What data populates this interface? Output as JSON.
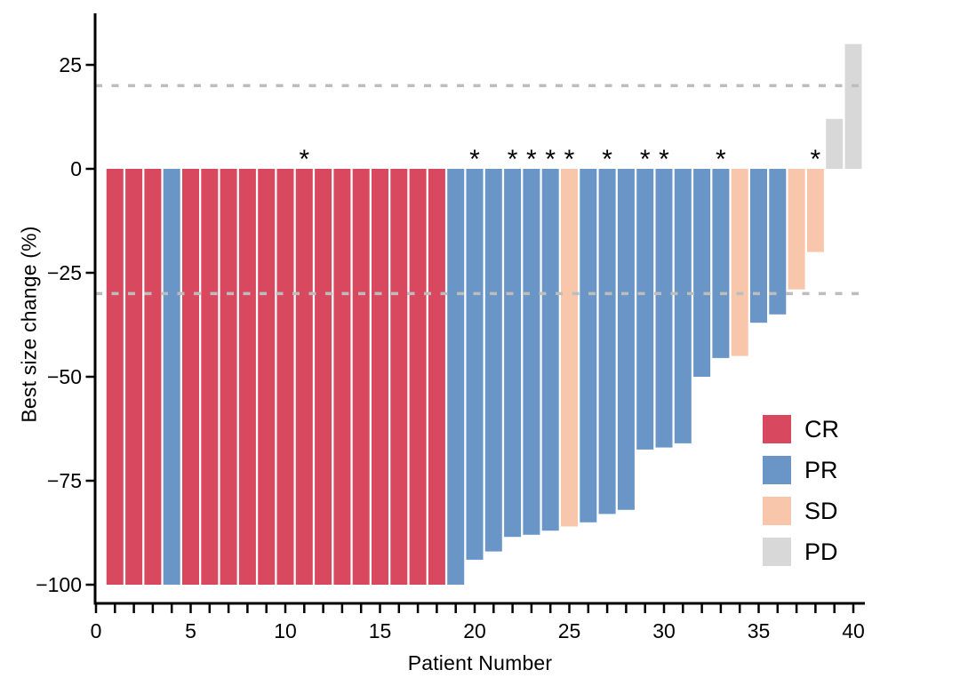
{
  "figure": {
    "background": "#ffffff",
    "axis_color": "#000000",
    "text_color": "#000000"
  },
  "chart_data": {
    "type": "bar",
    "variant": "waterfall",
    "title": "",
    "xlabel": "Patient Number",
    "ylabel": "Best size change (%)",
    "xlim": [
      0,
      40.6
    ],
    "ylim": [
      -104,
      37
    ],
    "grid": "off",
    "legend_position": "inside-right",
    "x_ticks": {
      "min": 0,
      "max": 40,
      "minor_every": 1,
      "labeled": [
        0,
        5,
        10,
        15,
        20,
        25,
        30,
        35,
        40
      ]
    },
    "y_ticks": [
      {
        "v": 25,
        "label": "25"
      },
      {
        "v": 0,
        "label": "0"
      },
      {
        "v": -25,
        "label": "−25"
      },
      {
        "v": -50,
        "label": "−50"
      },
      {
        "v": -75,
        "label": "−75"
      },
      {
        "v": -100,
        "label": "−100"
      }
    ],
    "reference_lines": {
      "values": [
        20,
        -30
      ],
      "color": "#bdbdbd",
      "style": "dashed"
    },
    "marker_symbol": "*",
    "marked_patients": [
      11,
      20,
      22,
      23,
      24,
      25,
      27,
      29,
      30,
      33,
      38
    ],
    "colors": {
      "CR": "#d8495f",
      "PR": "#6996c6",
      "SD": "#f8c6aa",
      "PD": "#d8d8d8"
    },
    "legend": [
      {
        "label": "CR",
        "color": "#d8495f"
      },
      {
        "label": "PR",
        "color": "#6996c6"
      },
      {
        "label": "SD",
        "color": "#f8c6aa"
      },
      {
        "label": "PD",
        "color": "#d8d8d8"
      }
    ],
    "patients": [
      {
        "patient": 1,
        "response": "CR",
        "value": -100,
        "star": false
      },
      {
        "patient": 2,
        "response": "CR",
        "value": -100,
        "star": false
      },
      {
        "patient": 3,
        "response": "CR",
        "value": -100,
        "star": false
      },
      {
        "patient": 4,
        "response": "PR",
        "value": -100,
        "star": false
      },
      {
        "patient": 5,
        "response": "CR",
        "value": -100,
        "star": false
      },
      {
        "patient": 6,
        "response": "CR",
        "value": -100,
        "star": false
      },
      {
        "patient": 7,
        "response": "CR",
        "value": -100,
        "star": false
      },
      {
        "patient": 8,
        "response": "CR",
        "value": -100,
        "star": false
      },
      {
        "patient": 9,
        "response": "CR",
        "value": -100,
        "star": false
      },
      {
        "patient": 10,
        "response": "CR",
        "value": -100,
        "star": false
      },
      {
        "patient": 11,
        "response": "CR",
        "value": -100,
        "star": true
      },
      {
        "patient": 12,
        "response": "CR",
        "value": -100,
        "star": false
      },
      {
        "patient": 13,
        "response": "CR",
        "value": -100,
        "star": false
      },
      {
        "patient": 14,
        "response": "CR",
        "value": -100,
        "star": false
      },
      {
        "patient": 15,
        "response": "CR",
        "value": -100,
        "star": false
      },
      {
        "patient": 16,
        "response": "CR",
        "value": -100,
        "star": false
      },
      {
        "patient": 17,
        "response": "CR",
        "value": -100,
        "star": false
      },
      {
        "patient": 18,
        "response": "CR",
        "value": -100,
        "star": false
      },
      {
        "patient": 19,
        "response": "PR",
        "value": -100,
        "star": false
      },
      {
        "patient": 20,
        "response": "PR",
        "value": -94,
        "star": true
      },
      {
        "patient": 21,
        "response": "PR",
        "value": -92,
        "star": false
      },
      {
        "patient": 22,
        "response": "PR",
        "value": -88.5,
        "star": true
      },
      {
        "patient": 23,
        "response": "PR",
        "value": -88,
        "star": true
      },
      {
        "patient": 24,
        "response": "PR",
        "value": -87,
        "star": true
      },
      {
        "patient": 25,
        "response": "SD",
        "value": -86,
        "star": true
      },
      {
        "patient": 26,
        "response": "PR",
        "value": -85,
        "star": false
      },
      {
        "patient": 27,
        "response": "PR",
        "value": -83,
        "star": true
      },
      {
        "patient": 28,
        "response": "PR",
        "value": -82,
        "star": false
      },
      {
        "patient": 29,
        "response": "PR",
        "value": -67.5,
        "star": true
      },
      {
        "patient": 30,
        "response": "PR",
        "value": -67,
        "star": true
      },
      {
        "patient": 31,
        "response": "PR",
        "value": -66,
        "star": false
      },
      {
        "patient": 32,
        "response": "PR",
        "value": -50,
        "star": false
      },
      {
        "patient": 33,
        "response": "PR",
        "value": -45.5,
        "star": true
      },
      {
        "patient": 34,
        "response": "SD",
        "value": -45,
        "star": false
      },
      {
        "patient": 35,
        "response": "PR",
        "value": -37,
        "star": false
      },
      {
        "patient": 36,
        "response": "PR",
        "value": -35,
        "star": false
      },
      {
        "patient": 37,
        "response": "SD",
        "value": -29,
        "star": false
      },
      {
        "patient": 38,
        "response": "SD",
        "value": -20,
        "star": true
      },
      {
        "patient": 39,
        "response": "PD",
        "value": 12,
        "star": false
      },
      {
        "patient": 40,
        "response": "PD",
        "value": 30,
        "star": false
      }
    ]
  }
}
